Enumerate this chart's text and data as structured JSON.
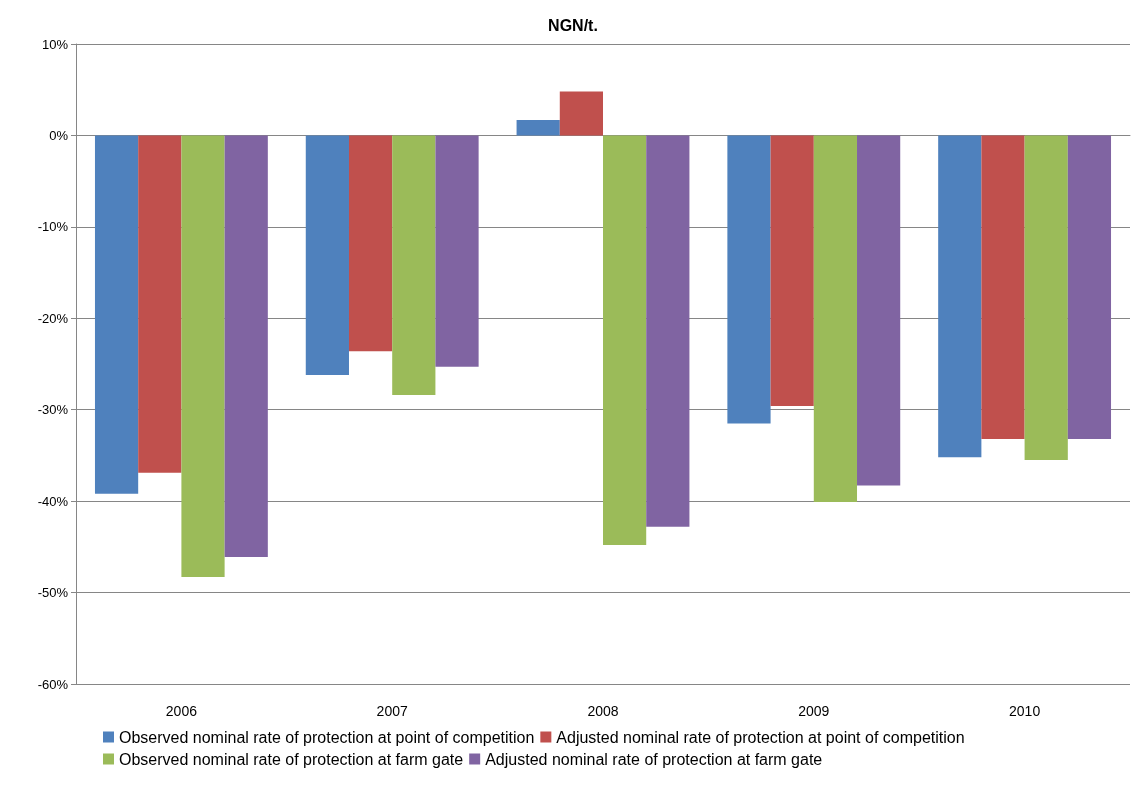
{
  "chart_data": {
    "type": "bar",
    "title": "NGN/t.",
    "categories": [
      "2006",
      "2007",
      "2008",
      "2009",
      "2010"
    ],
    "series": [
      {
        "name": "Observed nominal rate of protection at point of competition",
        "color": "#4f81bd",
        "values": [
          -39.2,
          -26.2,
          1.7,
          -31.5,
          -35.2
        ]
      },
      {
        "name": "Adjusted nominal rate of protection at point of competition",
        "color": "#c0504d",
        "values": [
          -36.9,
          -23.6,
          4.8,
          -29.6,
          -33.2
        ]
      },
      {
        "name": "Observed nominal rate of protection at farm gate",
        "color": "#9bbb59",
        "values": [
          -48.3,
          -28.4,
          -44.8,
          -40.1,
          -35.5
        ]
      },
      {
        "name": "Adjusted nominal rate of protection at farm gate",
        "color": "#8064a2",
        "values": [
          -46.1,
          -25.3,
          -42.8,
          -38.3,
          -33.2
        ]
      }
    ],
    "ylim": [
      -60,
      10
    ],
    "yticks": [
      {
        "value": -60,
        "label": "-60%"
      },
      {
        "value": -50,
        "label": "-50%"
      },
      {
        "value": -40,
        "label": "-40%"
      },
      {
        "value": -30,
        "label": "-30%"
      },
      {
        "value": -20,
        "label": "-20%"
      },
      {
        "value": -10,
        "label": "-10%"
      },
      {
        "value": 0,
        "label": "0%"
      },
      {
        "value": 10,
        "label": "10%"
      }
    ],
    "grid": "y",
    "legend": "bottom"
  }
}
